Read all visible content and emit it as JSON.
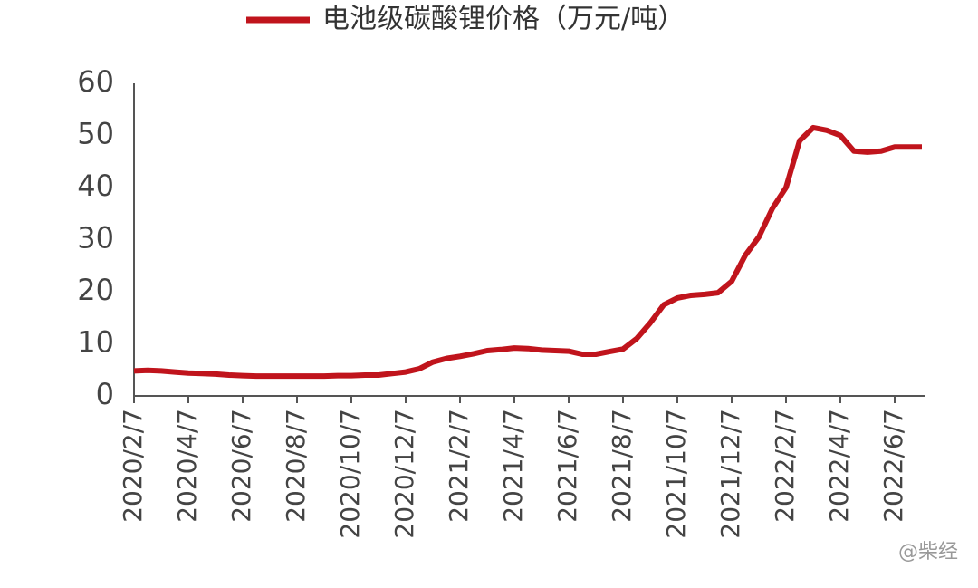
{
  "chart_data": {
    "type": "line",
    "categories": [
      "2020/2/7",
      null,
      null,
      null,
      "2020/4/7",
      null,
      null,
      null,
      "2020/6/7",
      null,
      null,
      null,
      "2020/8/7",
      null,
      null,
      null,
      "2020/10/7",
      null,
      null,
      null,
      "2020/12/7",
      null,
      null,
      null,
      "2021/2/7",
      null,
      null,
      null,
      "2021/4/7",
      null,
      null,
      null,
      "2021/6/7",
      null,
      null,
      null,
      "2021/8/7",
      null,
      null,
      null,
      "2021/10/7",
      null,
      null,
      null,
      "2021/12/7",
      null,
      null,
      null,
      "2022/2/7",
      null,
      null,
      null,
      "2022/4/7",
      null,
      null,
      null,
      "2022/6/7",
      null,
      null
    ],
    "series": [
      {
        "name": "电池级碳酸锂价格（万元/吨）",
        "color": "#c0141c",
        "values": [
          4.8,
          4.9,
          4.8,
          4.6,
          4.4,
          4.3,
          4.2,
          4.0,
          3.9,
          3.8,
          3.8,
          3.8,
          3.8,
          3.8,
          3.8,
          3.9,
          3.9,
          4.0,
          4.0,
          4.3,
          4.6,
          5.2,
          6.5,
          7.2,
          7.6,
          8.1,
          8.7,
          8.9,
          9.2,
          9.1,
          8.8,
          8.7,
          8.6,
          8.0,
          8.0,
          8.5,
          9.0,
          11.0,
          14.0,
          17.5,
          18.8,
          19.3,
          19.5,
          19.8,
          22.0,
          27.0,
          30.5,
          36.0,
          40.0,
          49.0,
          51.5,
          51.0,
          50.0,
          47.0,
          46.8,
          47.0,
          47.8,
          47.8,
          47.8
        ]
      }
    ],
    "ylim": [
      0,
      60
    ],
    "yticks": [
      0,
      10,
      20,
      30,
      40,
      50,
      60
    ],
    "grid": false,
    "legend": "top",
    "watermark": "@柴经"
  }
}
